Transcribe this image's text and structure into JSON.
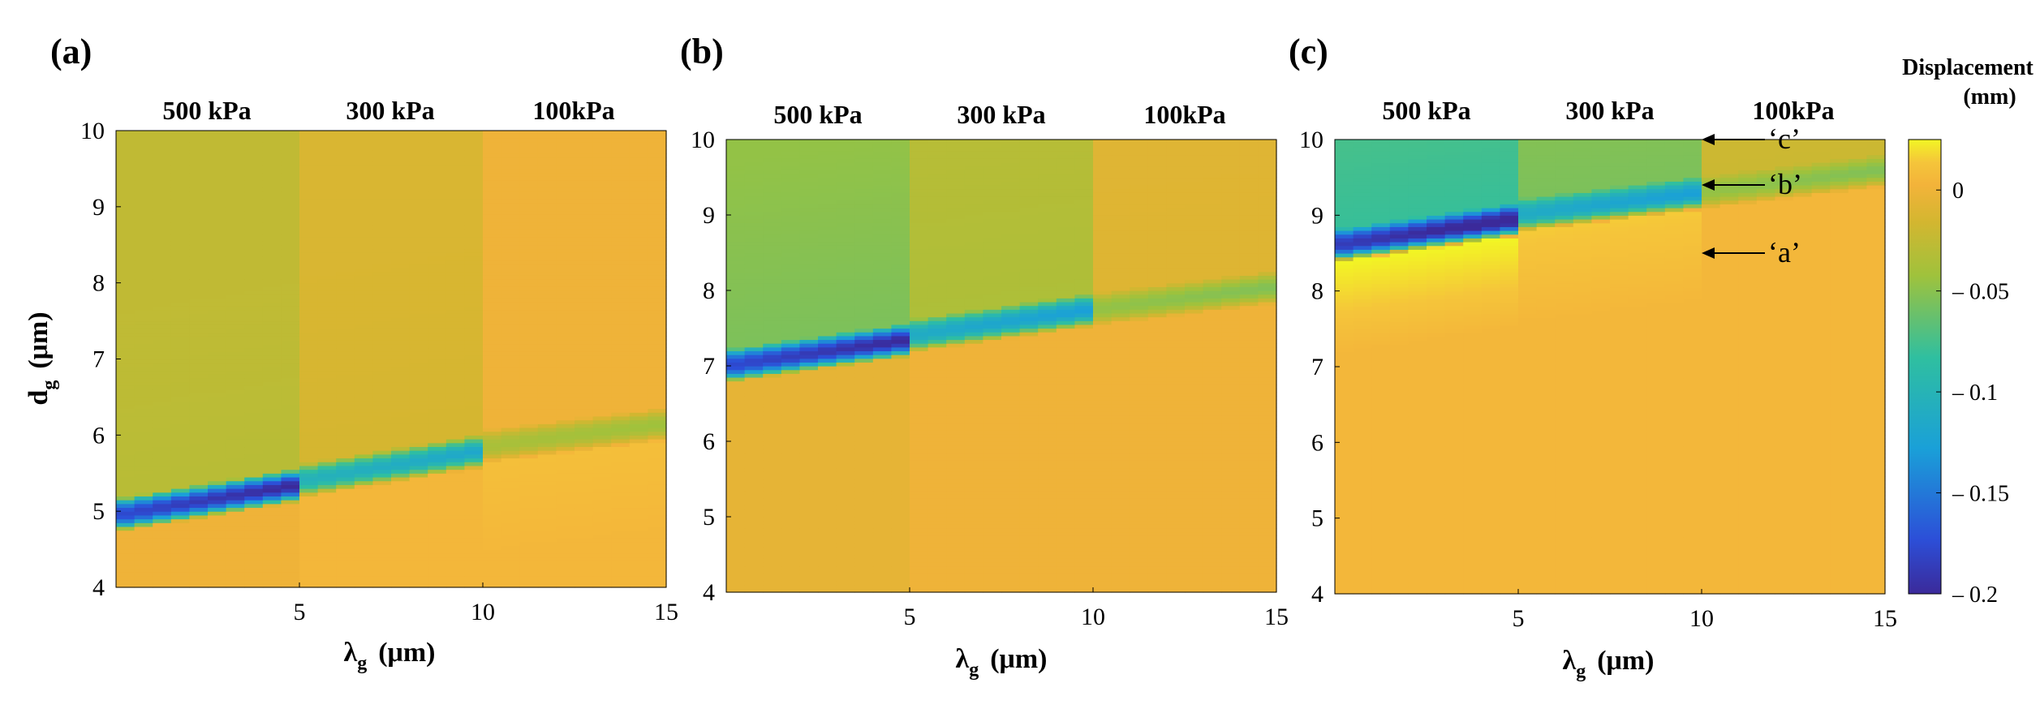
{
  "colors": {
    "cmap": [
      {
        "t": 0.0,
        "c": "#3b2a9a"
      },
      {
        "t": 0.12,
        "c": "#2c4fd8"
      },
      {
        "t": 0.32,
        "c": "#1aa0d8"
      },
      {
        "t": 0.52,
        "c": "#2fbfa0"
      },
      {
        "t": 0.7,
        "c": "#9fc23c"
      },
      {
        "t": 0.82,
        "c": "#d4b630"
      },
      {
        "t": 0.9,
        "c": "#f3b33a"
      },
      {
        "t": 0.95,
        "c": "#f5c53a"
      },
      {
        "t": 1.0,
        "c": "#f2f524"
      }
    ],
    "axis_line": "#000000"
  },
  "chart_data": [
    {
      "panel": "(a)",
      "type": "heatmap",
      "xlabel_base": "λ",
      "xlabel_sub": "g",
      "xlabel_unit": "(μm)",
      "ylabel_base": "d",
      "ylabel_sub": "g",
      "ylabel_unit": "(μm)",
      "xlim": [
        0,
        15
      ],
      "ylim": [
        4,
        10
      ],
      "x_ticks": [
        {
          "value": 5,
          "label": "5"
        },
        {
          "value": 10,
          "label": "10"
        },
        {
          "value": 15,
          "label": "15"
        }
      ],
      "y_ticks": [
        {
          "value": 4,
          "label": "4"
        },
        {
          "value": 5,
          "label": "5"
        },
        {
          "value": 6,
          "label": "6"
        },
        {
          "value": 7,
          "label": "7"
        },
        {
          "value": 8,
          "label": "8"
        },
        {
          "value": 9,
          "label": "9"
        },
        {
          "value": 10,
          "label": "10"
        }
      ],
      "regions": [
        {
          "label": "500 kPa",
          "x_start": 0,
          "x_end": 5,
          "band_d_start": 4.95,
          "band_d_end": 5.35,
          "band_min": -0.19,
          "above_val": -0.03,
          "below_val": 0.0
        },
        {
          "label": "300 kPa",
          "x_start": 5,
          "x_end": 10,
          "band_d_start": 5.4,
          "band_d_end": 5.8,
          "band_min": -0.11,
          "above_val": -0.015,
          "below_val": 0.005
        },
        {
          "label": "100kPa",
          "x_start": 10,
          "x_end": 15,
          "band_d_start": 5.85,
          "band_d_end": 6.15,
          "band_min": -0.04,
          "above_val": 0.0,
          "below_val": 0.01
        }
      ]
    },
    {
      "panel": "(b)",
      "type": "heatmap",
      "xlabel_base": "λ",
      "xlabel_sub": "g",
      "xlabel_unit": "(μm)",
      "ylabel_base": "",
      "ylabel_sub": "",
      "ylabel_unit": "",
      "xlim": [
        0,
        15
      ],
      "ylim": [
        4,
        10
      ],
      "x_ticks": [
        {
          "value": 5,
          "label": "5"
        },
        {
          "value": 10,
          "label": "10"
        },
        {
          "value": 15,
          "label": "15"
        }
      ],
      "y_ticks": [
        {
          "value": 4,
          "label": "4"
        },
        {
          "value": 5,
          "label": "5"
        },
        {
          "value": 6,
          "label": "6"
        },
        {
          "value": 7,
          "label": "7"
        },
        {
          "value": 8,
          "label": "8"
        },
        {
          "value": 9,
          "label": "9"
        },
        {
          "value": 10,
          "label": "10"
        }
      ],
      "regions": [
        {
          "label": "500 kPa",
          "x_start": 0,
          "x_end": 5,
          "band_d_start": 7.0,
          "band_d_end": 7.35,
          "band_min": -0.19,
          "above_val": -0.055,
          "below_val": -0.005
        },
        {
          "label": "300 kPa",
          "x_start": 5,
          "x_end": 10,
          "band_d_start": 7.4,
          "band_d_end": 7.75,
          "band_min": -0.12,
          "above_val": -0.035,
          "below_val": 0.0
        },
        {
          "label": "100kPa",
          "x_start": 10,
          "x_end": 15,
          "band_d_start": 7.75,
          "band_d_end": 8.05,
          "band_min": -0.05,
          "above_val": -0.01,
          "below_val": 0.0
        }
      ]
    },
    {
      "panel": "(c)",
      "type": "heatmap",
      "xlabel_base": "λ",
      "xlabel_sub": "g",
      "xlabel_unit": "(μm)",
      "ylabel_base": "",
      "ylabel_sub": "",
      "ylabel_unit": "",
      "xlim": [
        0,
        15
      ],
      "ylim": [
        4,
        10
      ],
      "x_ticks": [
        {
          "value": 5,
          "label": "5"
        },
        {
          "value": 10,
          "label": "10"
        },
        {
          "value": 15,
          "label": "15"
        }
      ],
      "y_ticks": [
        {
          "value": 4,
          "label": "4"
        },
        {
          "value": 5,
          "label": "5"
        },
        {
          "value": 6,
          "label": "6"
        },
        {
          "value": 7,
          "label": "7"
        },
        {
          "value": 8,
          "label": "8"
        },
        {
          "value": 9,
          "label": "9"
        },
        {
          "value": 10,
          "label": "10"
        }
      ],
      "regions": [
        {
          "label": "500 kPa",
          "x_start": 0,
          "x_end": 5,
          "band_d_start": 8.6,
          "band_d_end": 8.95,
          "band_min": -0.2,
          "above_val": -0.08,
          "below_val": 0.025
        },
        {
          "label": "300 kPa",
          "x_start": 5,
          "x_end": 10,
          "band_d_start": 9.0,
          "band_d_end": 9.3,
          "band_min": -0.12,
          "above_val": -0.055,
          "below_val": 0.015
        },
        {
          "label": "100kPa",
          "x_start": 10,
          "x_end": 15,
          "band_d_start": 9.3,
          "band_d_end": 9.6,
          "band_min": -0.05,
          "above_val": -0.02,
          "below_val": 0.005
        }
      ],
      "annotations": [
        {
          "label": "‘c’",
          "x": 10,
          "y": 10.0
        },
        {
          "label": "‘b’",
          "x": 10,
          "y": 9.4
        },
        {
          "label": "‘a’",
          "x": 10,
          "y": 8.5
        }
      ]
    }
  ],
  "colorbar": {
    "title_line1": "Displacement",
    "title_line2": "(mm)",
    "min": -0.2,
    "max": 0.025,
    "ticks": [
      {
        "value": 0,
        "label": "0"
      },
      {
        "value": -0.05,
        "label": "– 0.05"
      },
      {
        "value": -0.1,
        "label": "– 0.1"
      },
      {
        "value": -0.15,
        "label": "– 0.15"
      },
      {
        "value": -0.2,
        "label": "– 0.2"
      }
    ]
  }
}
